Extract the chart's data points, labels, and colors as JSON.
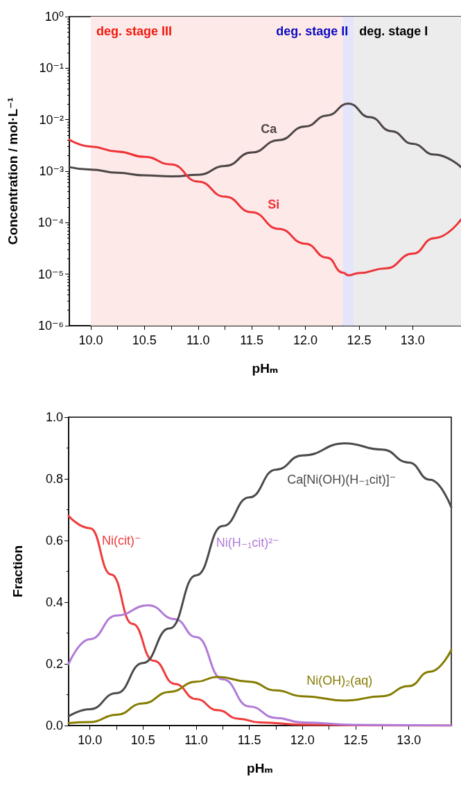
{
  "chart_data": [
    {
      "type": "line",
      "xlabel": "pHₘ",
      "ylabel": "Concentration / mol·L⁻¹",
      "log": "y",
      "grid": false,
      "legend": false,
      "marker": "none",
      "line_style": "solid",
      "xlim": [
        9.8,
        13.45
      ],
      "xticks": [
        {
          "value": 10,
          "label": "10.0"
        },
        10.5,
        {
          "value": 11,
          "label": "11.0"
        },
        11.5,
        {
          "value": 12,
          "label": "12.0"
        },
        12.5,
        {
          "value": 13,
          "label": "13.0"
        }
      ],
      "ylim": [
        1e-06,
        1
      ],
      "yticks": [
        {
          "value": 1e-06,
          "label": "10⁻⁶"
        },
        {
          "value": 1e-05,
          "label": "10⁻⁵"
        },
        {
          "value": 0.0001,
          "label": "10⁻⁴"
        },
        {
          "value": 0.001,
          "label": "10⁻³"
        },
        {
          "value": 0.01,
          "label": "10⁻²"
        },
        {
          "value": 0.1,
          "label": "10⁻¹"
        },
        {
          "value": 1,
          "label": "10⁰"
        }
      ],
      "bands": [
        {
          "axis": "x",
          "from": 10.0,
          "to": 12.35,
          "label": "deg. stage III",
          "color": "#fde9e8"
        },
        {
          "axis": "x",
          "from": 12.35,
          "to": 12.45,
          "label": "deg. stage II",
          "color": "#e4e4fb"
        },
        {
          "axis": "x",
          "from": 12.45,
          "to": 13.45,
          "label": "deg. stage I",
          "color": "#ececec"
        }
      ],
      "series": [
        {
          "name": "Ca",
          "color": "#4d4546",
          "x": [
            9.8,
            10.0,
            10.25,
            10.5,
            10.75,
            11.0,
            11.25,
            11.5,
            11.75,
            12.0,
            12.2,
            12.4,
            12.6,
            12.8,
            13.0,
            13.2,
            13.45
          ],
          "values": [
            0.0012,
            0.00107,
            0.00093,
            0.00083,
            0.00079,
            0.00085,
            0.00126,
            0.0023,
            0.004,
            0.0074,
            0.012,
            0.0205,
            0.0112,
            0.006,
            0.0034,
            0.0021,
            0.0012
          ]
        },
        {
          "name": "Si",
          "color": "#ee3338",
          "x": [
            9.8,
            10.0,
            10.25,
            10.5,
            10.75,
            11.0,
            11.25,
            11.5,
            11.75,
            12.0,
            12.2,
            12.35,
            12.4,
            12.5,
            12.75,
            13.0,
            13.2,
            13.45
          ],
          "values": [
            0.0041,
            0.003,
            0.0024,
            0.0019,
            0.00135,
            0.00063,
            0.00032,
            0.00016,
            7.6e-05,
            3.9e-05,
            2.1e-05,
            1.07e-05,
            9.5e-06,
            1.05e-05,
            1.3e-05,
            2.5e-05,
            5e-05,
            0.000115
          ]
        }
      ]
    },
    {
      "type": "line",
      "xlabel": "pHₘ",
      "ylabel": "Fraction",
      "grid": false,
      "legend": false,
      "marker": "none",
      "line_style": "solid",
      "xlim": [
        9.8,
        13.4
      ],
      "xticks": [
        {
          "value": 10,
          "label": "10.0"
        },
        10.5,
        {
          "value": 11,
          "label": "11.0"
        },
        11.5,
        {
          "value": 12,
          "label": "12.0"
        },
        12.5,
        {
          "value": 13,
          "label": "13.0"
        }
      ],
      "ylim": [
        0,
        1
      ],
      "yticks": [
        {
          "value": 0,
          "label": "0.0"
        },
        0.2,
        0.4,
        0.6,
        0.8,
        {
          "value": 1,
          "label": "1.0"
        }
      ],
      "series": [
        {
          "name": "Ni(cit)⁻",
          "color": "#ef3b3b",
          "x": [
            9.8,
            10.0,
            10.2,
            10.4,
            10.6,
            10.8,
            11.0,
            11.2,
            11.4,
            11.6,
            12.0,
            12.5,
            13.0,
            13.4
          ],
          "values": [
            0.68,
            0.64,
            0.49,
            0.33,
            0.21,
            0.135,
            0.086,
            0.05,
            0.022,
            0.01,
            0.003,
            0.001,
            0,
            0
          ]
        },
        {
          "name": "Ni(H₋₁cit)²⁻",
          "color": "#b07ad8",
          "x": [
            9.8,
            10.0,
            10.25,
            10.55,
            10.8,
            11.0,
            11.25,
            11.5,
            11.75,
            12.0,
            12.5,
            13.0,
            13.4
          ],
          "values": [
            0.2,
            0.28,
            0.357,
            0.39,
            0.345,
            0.287,
            0.15,
            0.062,
            0.025,
            0.01,
            0.002,
            0.001,
            0
          ]
        },
        {
          "name": "Ca[Ni(OH)(H₋₁cit)]⁻",
          "color": "#4a4a4a",
          "x": [
            9.8,
            10.0,
            10.25,
            10.5,
            10.75,
            11.0,
            11.25,
            11.5,
            11.75,
            12.0,
            12.4,
            12.75,
            13.0,
            13.2,
            13.4
          ],
          "values": [
            0.03,
            0.053,
            0.105,
            0.203,
            0.315,
            0.487,
            0.647,
            0.74,
            0.83,
            0.876,
            0.915,
            0.895,
            0.853,
            0.797,
            0.708
          ]
        },
        {
          "name": "Ni(OH)₂(aq)",
          "color": "#857c00",
          "x": [
            9.8,
            10.0,
            10.25,
            10.5,
            10.75,
            11.0,
            11.2,
            11.5,
            11.75,
            12.0,
            12.4,
            12.75,
            13.0,
            13.2,
            13.4
          ],
          "values": [
            0.008,
            0.011,
            0.035,
            0.072,
            0.109,
            0.142,
            0.158,
            0.142,
            0.114,
            0.095,
            0.081,
            0.095,
            0.128,
            0.175,
            0.245
          ]
        }
      ]
    }
  ]
}
